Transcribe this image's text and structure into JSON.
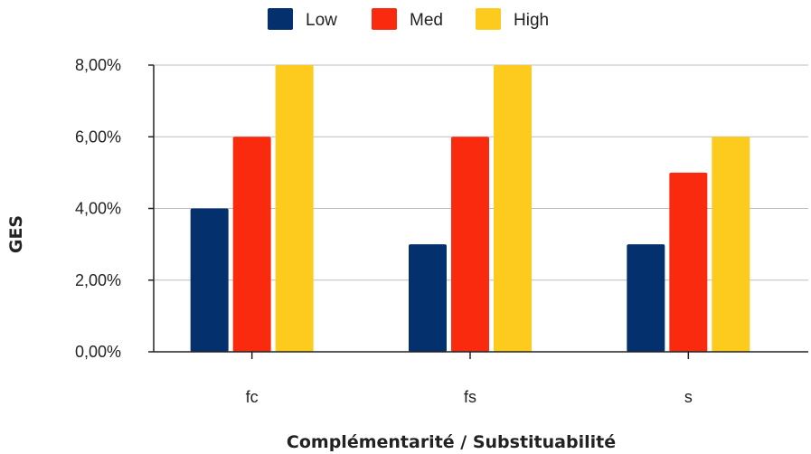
{
  "chart_data": {
    "type": "bar",
    "categories": [
      "fc",
      "fs",
      "s"
    ],
    "series": [
      {
        "name": "Low",
        "color": "#04306e",
        "values": [
          4,
          3,
          3
        ]
      },
      {
        "name": "Med",
        "color": "#fa2a0f",
        "values": [
          6,
          6,
          5
        ]
      },
      {
        "name": "High",
        "color": "#fdcb1e",
        "values": [
          8,
          8,
          6
        ]
      }
    ],
    "y_ticks": [
      "0,00%",
      "2,00%",
      "4,00%",
      "6,00%",
      "8,00%"
    ],
    "ylim": [
      0,
      8
    ],
    "xlabel": "Complémentarité / Substituabilité",
    "ylabel": "GES",
    "legend_position": "top-center",
    "grid": true
  }
}
